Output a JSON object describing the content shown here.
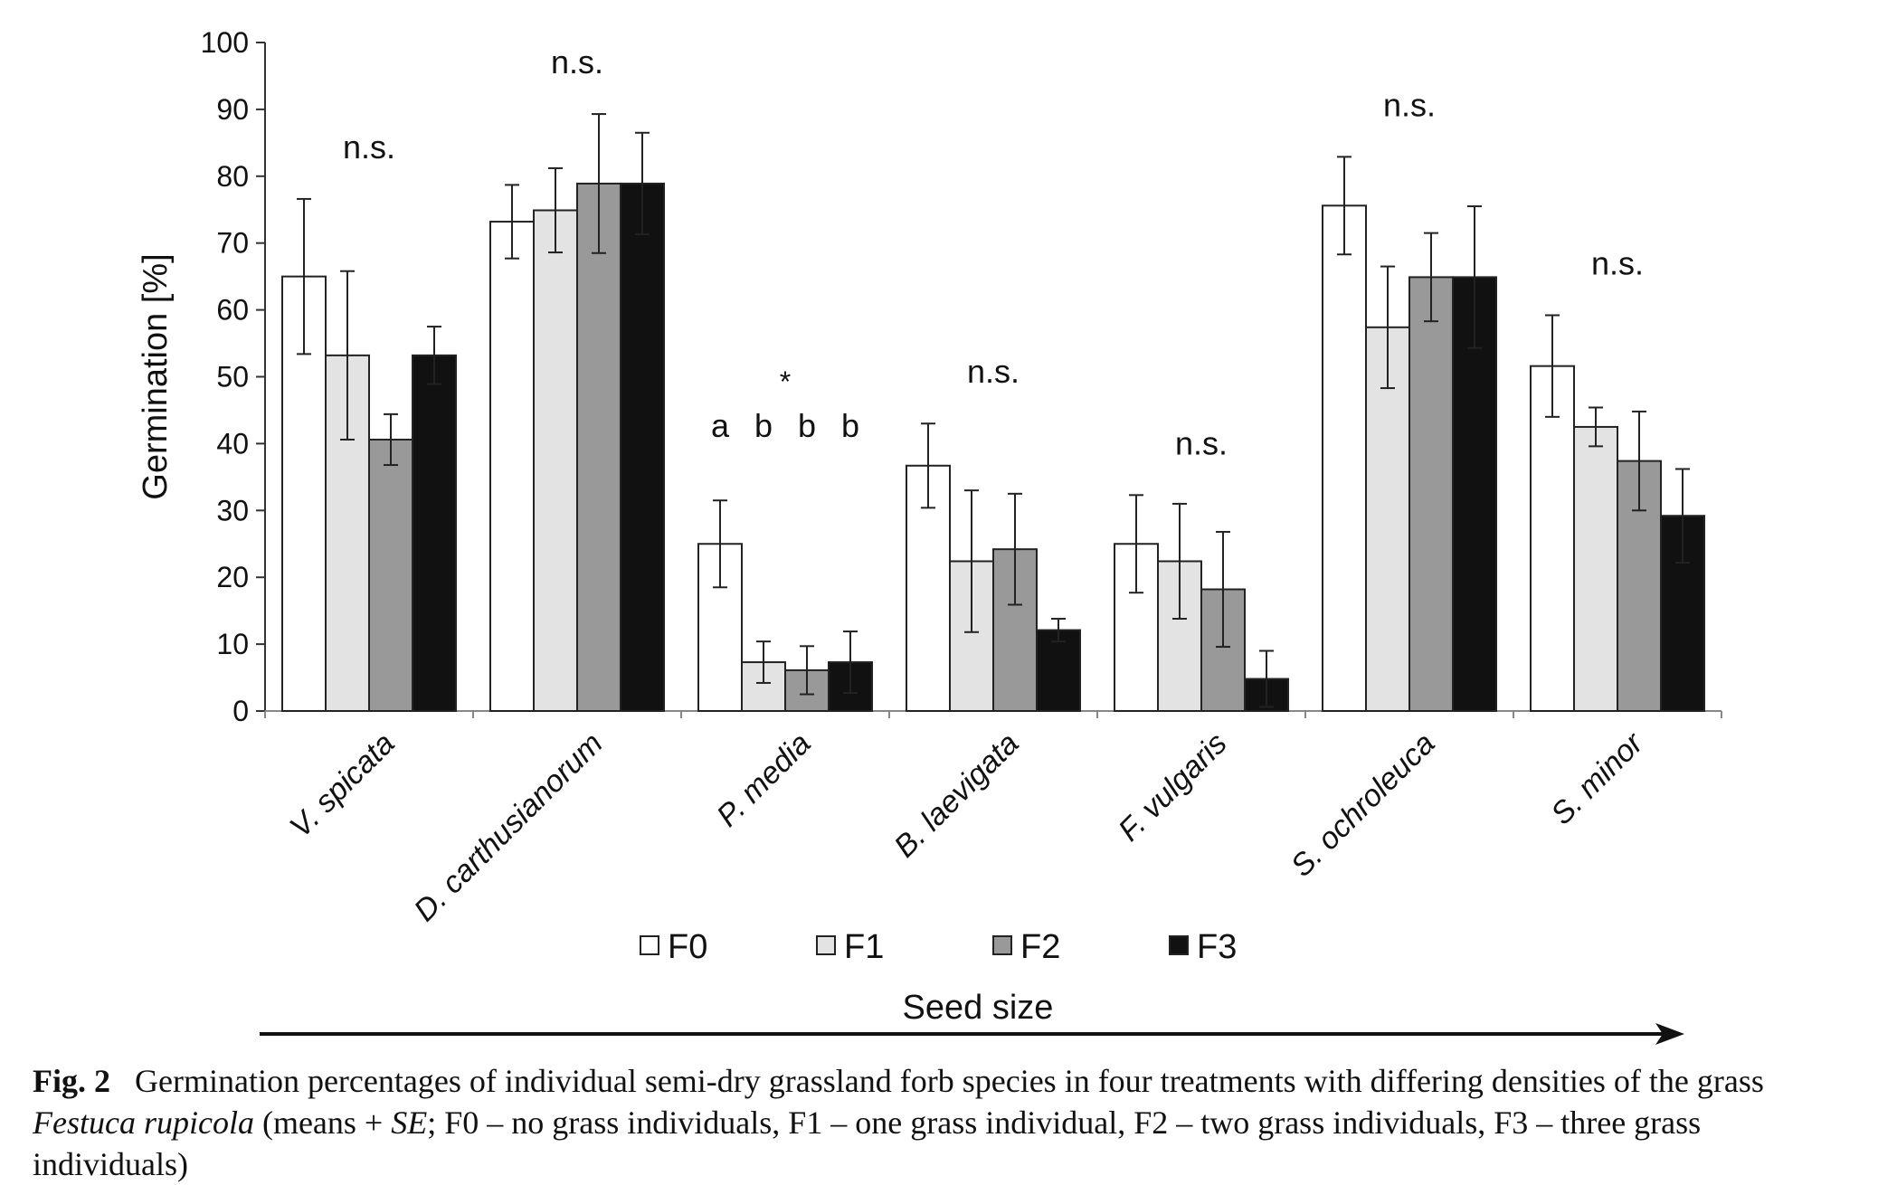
{
  "chart_data": {
    "type": "bar",
    "ylabel": "Germination [%]",
    "xlabel": "Seed size",
    "ylim": [
      0,
      100
    ],
    "yticks": [
      "0",
      "10",
      "20",
      "30",
      "40",
      "50",
      "60",
      "70",
      "80",
      "90",
      "100"
    ],
    "categories": [
      "V. spicata",
      "D. carthusianorum",
      "P. media",
      "B. laevigata",
      "F. vulgaris",
      "S. ochroleuca",
      "S. minor"
    ],
    "series": [
      {
        "name": "F0",
        "color": "#ffffff",
        "values": [
          65,
          73.2,
          25,
          36.7,
          25,
          75.6,
          51.6
        ],
        "err": [
          11.6,
          5.5,
          6.5,
          6.3,
          7.3,
          7.3,
          7.6
        ]
      },
      {
        "name": "F1",
        "color": "#e3e3e3",
        "values": [
          53.2,
          74.9,
          7.3,
          22.4,
          22.4,
          57.4,
          42.5
        ],
        "err": [
          12.6,
          6.3,
          3.1,
          10.6,
          8.6,
          9.1,
          2.9
        ]
      },
      {
        "name": "F2",
        "color": "#999999",
        "values": [
          40.6,
          78.9,
          6.1,
          24.2,
          18.2,
          64.9,
          37.4
        ],
        "err": [
          3.8,
          10.4,
          3.6,
          8.3,
          8.6,
          6.6,
          7.4
        ]
      },
      {
        "name": "F3",
        "color": "#111111",
        "values": [
          53.2,
          78.9,
          7.3,
          12.1,
          4.8,
          64.9,
          29.2
        ],
        "err": [
          4.3,
          7.6,
          4.6,
          1.7,
          4.2,
          10.6,
          7.0
        ]
      }
    ],
    "significance": [
      {
        "category": "V. spicata",
        "label": "n.s."
      },
      {
        "category": "D. carthusianorum",
        "label": "n.s."
      },
      {
        "category": "P. media",
        "label": "*",
        "letters": [
          "a",
          "b",
          "b",
          "b"
        ]
      },
      {
        "category": "B. laevigata",
        "label": "n.s."
      },
      {
        "category": "F. vulgaris",
        "label": "n.s."
      },
      {
        "category": "S. ochroleuca",
        "label": "n.s."
      },
      {
        "category": "S. minor",
        "label": "n.s."
      }
    ],
    "legend_position": "bottom-center"
  },
  "caption": {
    "label": "Fig. 2",
    "text_before_italic": "Germination percentages of individual semi-dry grassland forb species in four treatments with differing densities of the grass ",
    "italic_name": "Festuca rupicola",
    "text_mid": " (means + ",
    "italic_se": "SE",
    "text_after": "; F0 – no grass individuals, F1 – one grass individual, F2 – two grass individuals, F3 – three grass individuals)"
  }
}
